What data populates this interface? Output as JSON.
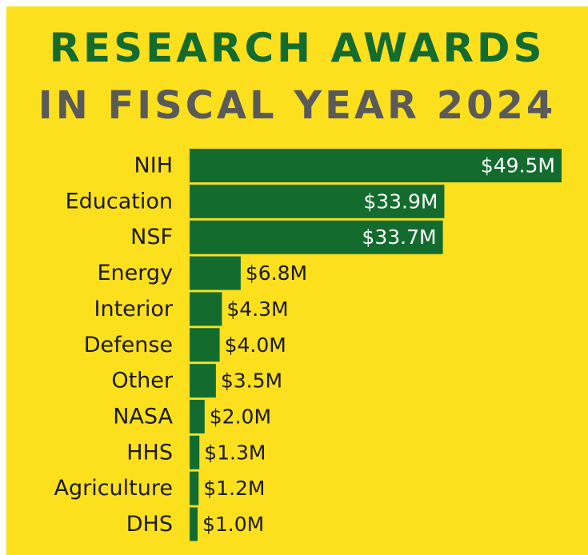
{
  "title_line1": "RESEARCH AWARDS",
  "title_line2": "IN FISCAL YEAR 2024",
  "colors": {
    "background": "#FCE01E",
    "bar": "#136C2E",
    "title_primary": "#136C2E",
    "title_secondary": "#5A5A5A"
  },
  "chart_data": {
    "type": "bar",
    "orientation": "horizontal",
    "categories": [
      "NIH",
      "Education",
      "NSF",
      "Energy",
      "Interior",
      "Defense",
      "Other",
      "NASA",
      "HHS",
      "Agriculture",
      "DHS"
    ],
    "values": [
      49.5,
      33.9,
      33.7,
      6.8,
      4.3,
      4.0,
      3.5,
      2.0,
      1.3,
      1.2,
      1.0
    ],
    "data_labels": [
      "$49.5M",
      "$33.9M",
      "$33.7M",
      "$6.8M",
      "$4.3M",
      "$4.0M",
      "$3.5M",
      "$2.0M",
      "$1.3M",
      "$1.2M",
      "$1.0M"
    ],
    "title": "RESEARCH AWARDS IN FISCAL YEAR 2024",
    "xlabel": "",
    "ylabel": "",
    "xlim": [
      0,
      49.5
    ],
    "grid": false,
    "legend": "none"
  }
}
